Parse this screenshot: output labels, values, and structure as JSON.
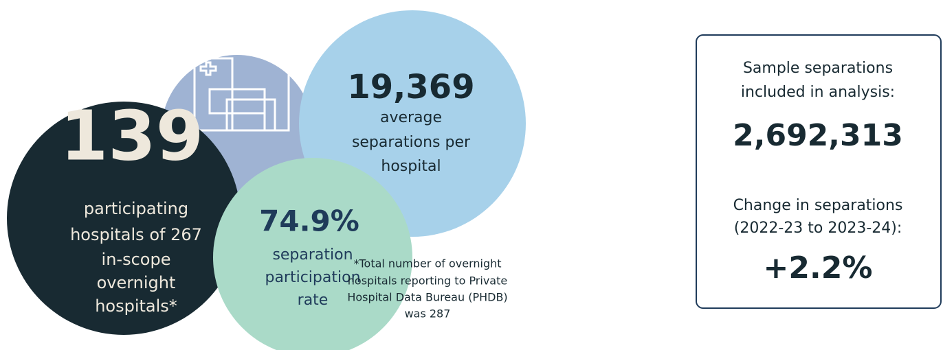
{
  "hospitals": {
    "number": "139",
    "lines": [
      "participating",
      "hospitals of 267",
      "in-scope",
      "overnight",
      "hospitals*"
    ]
  },
  "average": {
    "number": "19,369",
    "lines": [
      "average",
      "separations per",
      "hospital"
    ]
  },
  "participation": {
    "number": "74.9%",
    "lines": [
      "separation",
      "participation",
      "rate"
    ]
  },
  "footnote": [
    "*Total number of overnight",
    "hospitals reporting to Private",
    "Hospital Data Bureau (PHDB)",
    "was 287"
  ],
  "box": {
    "sample_label": [
      "Sample separations",
      "included in analysis:"
    ],
    "sample_value": "2,692,313",
    "change_label": [
      "Change in separations",
      "(2022-23 to 2023-24):"
    ],
    "change_value": "+2.2%"
  }
}
